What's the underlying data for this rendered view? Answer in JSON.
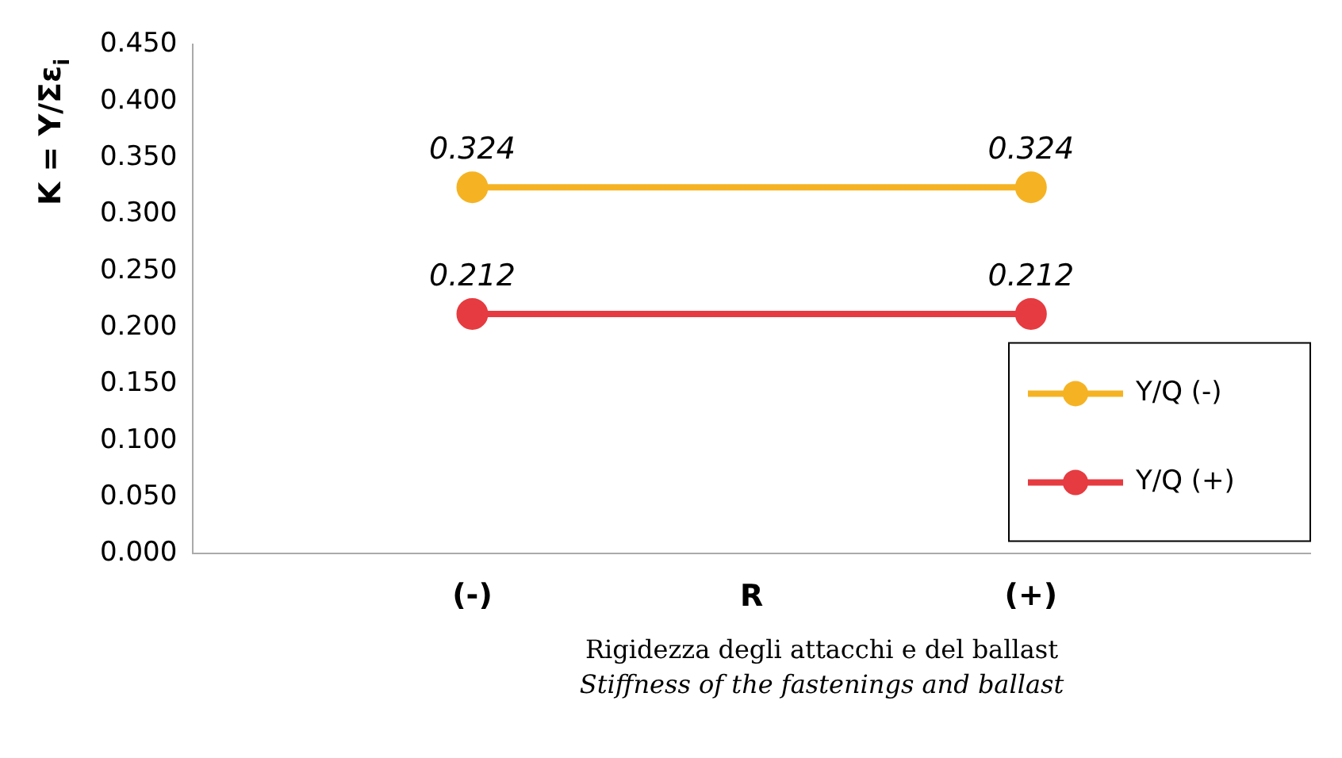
{
  "chart_data": {
    "type": "line",
    "ylabel": "K = Y/Σε$_{i}$",
    "xlabel": "R",
    "categories": [
      "(-)",
      "(+)"
    ],
    "series": [
      {
        "name": "Y/Q (-)",
        "color": "#f5b323",
        "values": [
          0.324,
          0.324
        ]
      },
      {
        "name": "Y/Q (+)",
        "color": "#e63b40",
        "values": [
          0.212,
          0.212
        ]
      }
    ],
    "ylim": [
      0,
      0.45
    ],
    "yticks": [
      {
        "value": 0,
        "label": "0.000"
      },
      {
        "value": 0.05,
        "label": "0.050"
      },
      {
        "value": 0.1,
        "label": "0.100"
      },
      {
        "value": 0.15,
        "label": "0.150"
      },
      {
        "value": 0.2,
        "label": "0.200"
      },
      {
        "value": 0.25,
        "label": "0.250"
      },
      {
        "value": 0.3,
        "label": "0.300"
      },
      {
        "value": 0.35,
        "label": "0.350"
      },
      {
        "value": 0.4,
        "label": "0.400"
      },
      {
        "value": 0.45,
        "label": "0.450"
      }
    ],
    "data_labels": true,
    "marker": "circle",
    "line_style": "solid",
    "grid": false,
    "legend": "bottom right",
    "annotations": [
      "Rigidezza degli attacchi e del ballast",
      "Stiffness of the fastenings and ballast"
    ]
  }
}
